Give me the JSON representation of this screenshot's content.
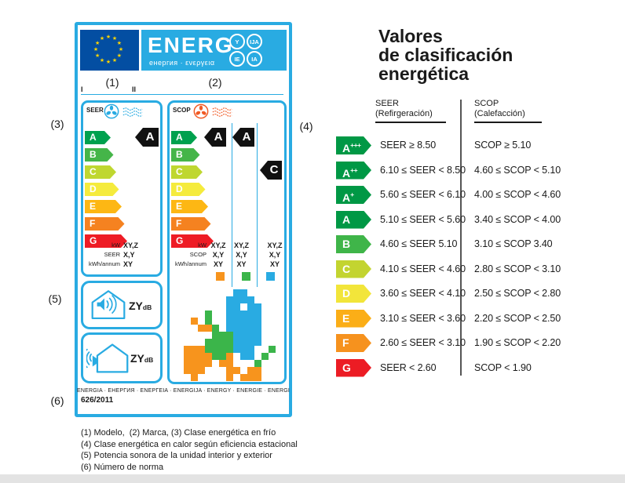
{
  "colors": {
    "cyan": "#29ABE2",
    "eu_blue": "#034EA2",
    "star_yellow": "#FFD500",
    "black_arrow": "#111111"
  },
  "label": {
    "header": {
      "brand": "ENERG",
      "subtitle": "енергия · ενεργεια",
      "suffixes": [
        "Y",
        "IJA",
        "IE",
        "IA"
      ]
    },
    "model_markers": {
      "i": "I",
      "ii": "II"
    },
    "annotations": {
      "n1": "(1)",
      "n2": "(2)",
      "n3": "(3)",
      "n4": "(4)",
      "n5": "(5)",
      "n6": "(6)"
    },
    "class_letters": [
      "A",
      "B",
      "C",
      "D",
      "E",
      "F",
      "G"
    ],
    "class_colors": [
      "#00A14E",
      "#45B549",
      "#BFD730",
      "#F5EB3D",
      "#FDB714",
      "#F58220",
      "#EE1C25"
    ],
    "seer": {
      "title": "SEER",
      "rating": "A",
      "values": [
        {
          "label": "kW",
          "value": "XY,Z"
        },
        {
          "label": "SEER",
          "value": "X,Y"
        },
        {
          "label": "kWh/annum",
          "value": "XY"
        }
      ]
    },
    "scop": {
      "title": "SCOP",
      "ratings": [
        "A",
        "A",
        "C"
      ],
      "value_rows": [
        {
          "label": "kW",
          "cells": [
            "XY,Z",
            "XY,Z",
            "XY,Z"
          ]
        },
        {
          "label": "SCOP",
          "cells": [
            "X,Y",
            "X,Y",
            "X,Y"
          ]
        },
        {
          "label": "kWh/annum",
          "cells": [
            "XY",
            "XY",
            "XY"
          ]
        }
      ],
      "zone_colors": [
        "#F7941D",
        "#3BB54A",
        "#29ABE2"
      ],
      "map_colors": {
        "O": "#F7941D",
        "G": "#3BB54A",
        "B": "#29ABE2"
      },
      "map_rows": [
        ".......BB.....",
        "......BBBB....",
        "......BB.BB...",
        "...G..BBBBB...",
        ".O.G..BBBBB...",
        "..OOG.BBBBB...",
        "....GGGBBBB...",
        "...GGGGBBBB...",
        "OOOGGGGBBB..G.",
        "OOOOGGO.BB.G..",
        "OOOO.OO...G...",
        "OOO...OO.OO...",
        ".O....O.OOO..."
      ]
    },
    "noise": {
      "indoor": {
        "value": "ZY",
        "unit": "dB"
      },
      "outdoor": {
        "value": "ZY",
        "unit": "dB"
      }
    },
    "footer_line": "ENERGIA · ЕНЕРГИЯ · ΕΝΕΡΓΕΙΑ · ENERGIJA · ENERGY · ENERGIE · ENERGI",
    "regulation": "626/2011"
  },
  "table": {
    "title_lines": [
      "Valores",
      "de clasificación",
      "energética"
    ],
    "col1": {
      "line1": "SEER",
      "line2": "(Refirgeración)"
    },
    "col2": {
      "line1": "SCOP",
      "line2": "(Calefacción)"
    },
    "rows": [
      {
        "cls": "A",
        "plus": "+++",
        "color": "#009845",
        "seer": "SEER ≥ 8.50",
        "scop": "SCOP ≥ 5.10"
      },
      {
        "cls": "A",
        "plus": "++",
        "color": "#009845",
        "seer": "6.10 ≤ SEER < 8.50",
        "scop": "4.60 ≤ SCOP < 5.10"
      },
      {
        "cls": "A",
        "plus": "+",
        "color": "#009845",
        "seer": "5.60 ≤ SEER < 6.10",
        "scop": "4.00 ≤ SCOP < 4.60"
      },
      {
        "cls": "A",
        "plus": "",
        "color": "#009845",
        "seer": "5.10 ≤ SEER < 5.60",
        "scop": "3.40 ≤ SCOP < 4.00"
      },
      {
        "cls": "B",
        "plus": "",
        "color": "#3FB549",
        "seer": "4.60 ≤ SEER 5.10",
        "scop": "3.10 ≤ SCOP 3.40"
      },
      {
        "cls": "C",
        "plus": "",
        "color": "#C3D430",
        "seer": "4.10 ≤ SEER < 4.60",
        "scop": "2.80 ≤ SCOP < 3.10"
      },
      {
        "cls": "D",
        "plus": "",
        "color": "#F2E53A",
        "seer": "3.60 ≤ SEER < 4.10",
        "scop": "2.50 ≤ SCOP < 2.80"
      },
      {
        "cls": "E",
        "plus": "",
        "color": "#FBAE17",
        "seer": "3.10 ≤ SEER < 3.60",
        "scop": "2.20 ≤ SCOP < 2.50"
      },
      {
        "cls": "F",
        "plus": "",
        "color": "#F6921E",
        "seer": "2.60 ≤ SEER < 3.10",
        "scop": "1.90 ≤ SCOP < 2.20"
      },
      {
        "cls": "G",
        "plus": "",
        "color": "#EC1C24",
        "seer": "SEER < 2.60",
        "scop": "SCOP < 1.90"
      }
    ]
  },
  "footnotes": [
    "(1) Modelo,  (2) Marca, (3) Clase energética en frío",
    "(4) Clase energética en calor según eficiencia estacional",
    "(5) Potencia sonora de la unidad interior y exterior",
    "(6) Número de norma"
  ]
}
